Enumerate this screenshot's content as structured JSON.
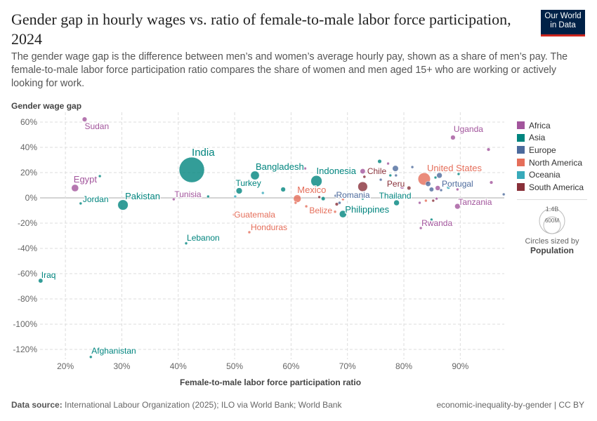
{
  "title": "Gender gap in hourly wages vs. ratio of female-to-male labor force participation, 2024",
  "subtitle": "The gender wage gap is the difference between men’s and women’s average hourly pay, shown as a share of men’s pay. The female-to-male labor force participation ratio compares the share of women and men aged 15+ who are working or actively looking for work.",
  "logo": "Our World in Data",
  "footer": {
    "source_label": "Data source:",
    "source": "International Labour Organization (2025); ILO via World Bank; World Bank",
    "right": "economic-inequality-by-gender | CC BY"
  },
  "size_legend": {
    "big": "1.4B",
    "small": "600M",
    "caption": "Circles sized by",
    "variable": "Population"
  },
  "chart_data": {
    "type": "scatter",
    "title": "Gender gap in hourly wages vs. ratio of female-to-male labor force participation, 2024",
    "xlabel": "Female-to-male labor force participation ratio",
    "ylabel": "Gender wage gap",
    "xlim": [
      15.5,
      97.8
    ],
    "ylim": [
      -127.8,
      67.8
    ],
    "xticks": [
      20,
      30,
      40,
      50,
      60,
      70,
      80,
      90
    ],
    "yticks": [
      60,
      40,
      20,
      0,
      -20,
      -40,
      -60,
      -80,
      -100,
      -120
    ],
    "unit": "%",
    "grid": true,
    "legend_position": "right",
    "colors": {
      "Africa": "#a2559c",
      "Asia": "#00847e",
      "Europe": "#4c6a9c",
      "North America": "#e56e5a",
      "Oceania": "#38aaba",
      "South America": "#883039"
    },
    "legend": [
      "Africa",
      "Asia",
      "Europe",
      "North America",
      "Oceania",
      "South America"
    ],
    "points": [
      {
        "label": "Sudan",
        "region": "Africa",
        "x": 23.4,
        "y": 62.2,
        "pop": 50
      },
      {
        "label": "Egypt",
        "region": "Africa",
        "x": 21.7,
        "y": 7.8,
        "pop": 115
      },
      {
        "label": "Jordan",
        "region": "Asia",
        "x": 22.7,
        "y": -4.4,
        "pop": 11
      },
      {
        "label": "",
        "region": "Asia",
        "x": 26.1,
        "y": 17.2,
        "pop": 10
      },
      {
        "label": "Pakistan",
        "region": "Asia",
        "x": 30.2,
        "y": -5.6,
        "pop": 240
      },
      {
        "label": "India",
        "region": "Asia",
        "x": 42.4,
        "y": 22.2,
        "pop": 1440
      },
      {
        "label": "Tunisia",
        "region": "Africa",
        "x": 39.2,
        "y": -1.1,
        "pop": 12
      },
      {
        "label": "",
        "region": "Asia",
        "x": 45.3,
        "y": 1.1,
        "pop": 12
      },
      {
        "label": "Lebanon",
        "region": "Asia",
        "x": 41.4,
        "y": -36,
        "pop": 6
      },
      {
        "label": "Afghanistan",
        "region": "Asia",
        "x": 24.5,
        "y": -126,
        "pop": 10
      },
      {
        "label": "Iraq",
        "region": "Asia",
        "x": 15.6,
        "y": -65.6,
        "pop": 45
      },
      {
        "label": "Bangladesh",
        "region": "Asia",
        "x": 53.6,
        "y": 17.8,
        "pop": 170
      },
      {
        "label": "Turkey",
        "region": "Asia",
        "x": 50.8,
        "y": 5.6,
        "pop": 85
      },
      {
        "label": "",
        "region": "Oceania",
        "x": 50.1,
        "y": 1.1,
        "pop": 9
      },
      {
        "label": "",
        "region": "Oceania",
        "x": 55,
        "y": 3.9,
        "pop": 9
      },
      {
        "label": "",
        "region": "Asia",
        "x": 58.6,
        "y": 6.7,
        "pop": 50
      },
      {
        "label": "Guatemala",
        "region": "North America",
        "x": 49.9,
        "y": -13.3,
        "pop": 18
      },
      {
        "label": "Honduras",
        "region": "North America",
        "x": 52.6,
        "y": -27.2,
        "pop": 10
      },
      {
        "label": "Mexico",
        "region": "North America",
        "x": 61.1,
        "y": -0.6,
        "pop": 130
      },
      {
        "label": "Indonesia",
        "region": "Asia",
        "x": 64.5,
        "y": 13.3,
        "pop": 280
      },
      {
        "label": "",
        "region": "Africa",
        "x": 62.5,
        "y": 23.3,
        "pop": 8
      },
      {
        "label": "",
        "region": "North America",
        "x": 60.8,
        "y": -3.9,
        "pop": 7
      },
      {
        "label": "",
        "region": "North America",
        "x": 62.7,
        "y": -6.7,
        "pop": 6
      },
      {
        "label": "",
        "region": "North America",
        "x": 64,
        "y": -10.6,
        "pop": 6
      },
      {
        "label": "",
        "region": "Asia",
        "x": 65.7,
        "y": -0.6,
        "pop": 35
      },
      {
        "label": "",
        "region": "South America",
        "x": 65,
        "y": 0.6,
        "pop": 7
      },
      {
        "label": "Belize",
        "region": "North America",
        "x": 67.8,
        "y": -11,
        "pop": 5
      },
      {
        "label": "",
        "region": "Europe",
        "x": 67.9,
        "y": 1.7,
        "pop": 7
      },
      {
        "label": "Romania",
        "region": "Europe",
        "x": 68.6,
        "y": -3.9,
        "pop": 19
      },
      {
        "label": "",
        "region": "South America",
        "x": 68.1,
        "y": -5,
        "pop": 25
      },
      {
        "label": "",
        "region": "North America",
        "x": 69.2,
        "y": -1.1,
        "pop": 6
      },
      {
        "label": "Philippines",
        "region": "Asia",
        "x": 69.2,
        "y": -12.8,
        "pop": 115
      },
      {
        "label": "",
        "region": "Asia",
        "x": 72.7,
        "y": -0.6,
        "pop": 6
      },
      {
        "label": "",
        "region": "South America",
        "x": 72.7,
        "y": 8.9,
        "pop": 210
      },
      {
        "label": "",
        "region": "Africa",
        "x": 72.7,
        "y": 21.1,
        "pop": 60
      },
      {
        "label": "Chile",
        "region": "South America",
        "x": 73,
        "y": 16.7,
        "pop": 19
      },
      {
        "label": "",
        "region": "Asia",
        "x": 75.7,
        "y": 28.9,
        "pop": 35
      },
      {
        "label": "",
        "region": "Africa",
        "x": 77.2,
        "y": 27.2,
        "pop": 14
      },
      {
        "label": "",
        "region": "Europe",
        "x": 78.5,
        "y": 23.3,
        "pop": 80
      },
      {
        "label": "",
        "region": "Asia",
        "x": 77.6,
        "y": 17.8,
        "pop": 6
      },
      {
        "label": "",
        "region": "Europe",
        "x": 78.6,
        "y": 17.8,
        "pop": 6
      },
      {
        "label": "",
        "region": "Europe",
        "x": 75.9,
        "y": 14.4,
        "pop": 6
      },
      {
        "label": "Thailand",
        "region": "Asia",
        "x": 78.7,
        "y": -3.9,
        "pop": 70
      },
      {
        "label": "",
        "region": "Africa",
        "x": 79.7,
        "y": 8.9,
        "pop": 45
      },
      {
        "label": "Peru",
        "region": "South America",
        "x": 80.9,
        "y": 7.8,
        "pop": 34
      },
      {
        "label": "",
        "region": "Europe",
        "x": 81.5,
        "y": 24.4,
        "pop": 6
      },
      {
        "label": "United States",
        "region": "North America",
        "x": 83.6,
        "y": 15,
        "pop": 340
      },
      {
        "label": "",
        "region": "Europe",
        "x": 84.3,
        "y": 11.1,
        "pop": 60
      },
      {
        "label": "",
        "region": "Europe",
        "x": 84.9,
        "y": 6.7,
        "pop": 45
      },
      {
        "label": "",
        "region": "Asia",
        "x": 85.6,
        "y": 16.1,
        "pop": 8
      },
      {
        "label": "",
        "region": "Europe",
        "x": 86.3,
        "y": 17.8,
        "pop": 68
      },
      {
        "label": "",
        "region": "Africa",
        "x": 86,
        "y": 7.8,
        "pop": 55
      },
      {
        "label": "Portugal",
        "region": "Europe",
        "x": 86.6,
        "y": 6.1,
        "pop": 10
      },
      {
        "label": "",
        "region": "Oceania",
        "x": 87.9,
        "y": 8.3,
        "pop": 27
      },
      {
        "label": "",
        "region": "Africa",
        "x": 85.8,
        "y": -0.6,
        "pop": 8
      },
      {
        "label": "",
        "region": "South America",
        "x": 85.2,
        "y": -2.2,
        "pop": 7
      },
      {
        "label": "",
        "region": "Africa",
        "x": 82.8,
        "y": -3.9,
        "pop": 8
      },
      {
        "label": "",
        "region": "North America",
        "x": 83.9,
        "y": -2.2,
        "pop": 6
      },
      {
        "label": "Tanzania",
        "region": "Africa",
        "x": 89.5,
        "y": -6.7,
        "pop": 68
      },
      {
        "label": "Rwanda",
        "region": "Africa",
        "x": 83,
        "y": -23.9,
        "pop": 14
      },
      {
        "label": "",
        "region": "Asia",
        "x": 84.9,
        "y": -17.2,
        "pop": 6
      },
      {
        "label": "Uganda",
        "region": "Africa",
        "x": 88.7,
        "y": 47.8,
        "pop": 50
      },
      {
        "label": "",
        "region": "Africa",
        "x": 95,
        "y": 38.3,
        "pop": 25
      },
      {
        "label": "",
        "region": "Africa",
        "x": 95.5,
        "y": 12.2,
        "pop": 25
      },
      {
        "label": "",
        "region": "Europe",
        "x": 97.7,
        "y": 2.8,
        "pop": 6
      },
      {
        "label": "",
        "region": "Asia",
        "x": 89.7,
        "y": 18.9,
        "pop": 6
      },
      {
        "label": "",
        "region": "Africa",
        "x": 89.5,
        "y": 6.7,
        "pop": 8
      }
    ]
  }
}
